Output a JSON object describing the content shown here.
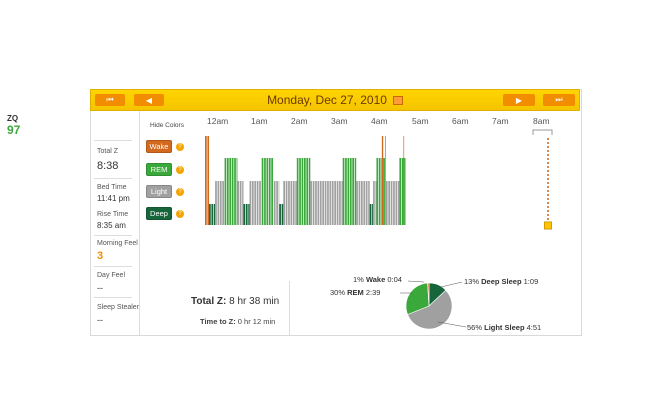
{
  "header": {
    "date": "Monday, Dec 27, 2010",
    "first_label": "⏮",
    "prev_label": "◀",
    "next_label": "▶",
    "last_label": "⏭"
  },
  "left": {
    "zq_label": "ZQ",
    "zq_value": "97",
    "total_z_label": "Total Z",
    "total_z_value": "8:38",
    "bed_time_label": "Bed Time",
    "bed_time_value": "11:41 pm",
    "rise_time_label": "Rise Time",
    "rise_time_value": "8:35 am",
    "morning_feel_label": "Morning Feel",
    "morning_feel_value": "3",
    "day_feel_label": "Day Feel",
    "day_feel_value": "--",
    "sleep_stealer_label": "Sleep Stealer",
    "sleep_stealer_value": "--"
  },
  "legend": {
    "hide_colors": "Hide Colors",
    "wake": "Wake",
    "rem": "REM",
    "light": "Light",
    "deep": "Deep",
    "help": "?"
  },
  "hours": [
    "12am",
    "1am",
    "2am",
    "3am",
    "4am",
    "5am",
    "6am",
    "7am",
    "8am"
  ],
  "summary": {
    "total_label": "Total Z:",
    "total_value": "8 hr 38 min",
    "ttz_label": "Time to Z:",
    "ttz_value": "0 hr 12 min"
  },
  "pie": {
    "wake": {
      "pct": "1%",
      "name": "Wake",
      "time": "0:04",
      "value": 1
    },
    "rem": {
      "pct": "30%",
      "name": "REM",
      "time": "2:39",
      "value": 30
    },
    "deep": {
      "pct": "13%",
      "name": "Deep Sleep",
      "time": "1:09",
      "value": 13
    },
    "light": {
      "pct": "56%",
      "name": "Light Sleep",
      "time": "4:51",
      "value": 56
    }
  },
  "colors": {
    "wake": "#d2691e",
    "rem": "#3aa83a",
    "light": "#a0a0a0",
    "deep": "#17653a",
    "accent": "#f28c00",
    "header": "#ffd400"
  },
  "hypnogram": [
    {
      "stage": "wake",
      "minutes": 6
    },
    {
      "stage": "deep",
      "minutes": 9
    },
    {
      "stage": "light",
      "minutes": 14
    },
    {
      "stage": "rem",
      "minutes": 19
    },
    {
      "stage": "light",
      "minutes": 9
    },
    {
      "stage": "deep",
      "minutes": 9
    },
    {
      "stage": "light",
      "minutes": 18
    },
    {
      "stage": "rem",
      "minutes": 18
    },
    {
      "stage": "light",
      "minutes": 8
    },
    {
      "stage": "deep",
      "minutes": 6
    },
    {
      "stage": "light",
      "minutes": 20
    },
    {
      "stage": "rem",
      "minutes": 20
    },
    {
      "stage": "light",
      "minutes": 48
    },
    {
      "stage": "rem",
      "minutes": 20
    },
    {
      "stage": "light",
      "minutes": 20
    },
    {
      "stage": "deep",
      "minutes": 5
    },
    {
      "stage": "light",
      "minutes": 5
    },
    {
      "stage": "rem",
      "minutes": 8
    },
    {
      "stage": "wake",
      "minutes": 2
    },
    {
      "stage": "rem",
      "minutes": 3
    },
    {
      "stage": "wake",
      "minutes": 1
    },
    {
      "stage": "light",
      "minutes": 20
    },
    {
      "stage": "rem",
      "minutes": 6
    },
    {
      "stage": "wake",
      "minutes": 1
    },
    {
      "stage": "rem",
      "minutes": 2
    }
  ]
}
